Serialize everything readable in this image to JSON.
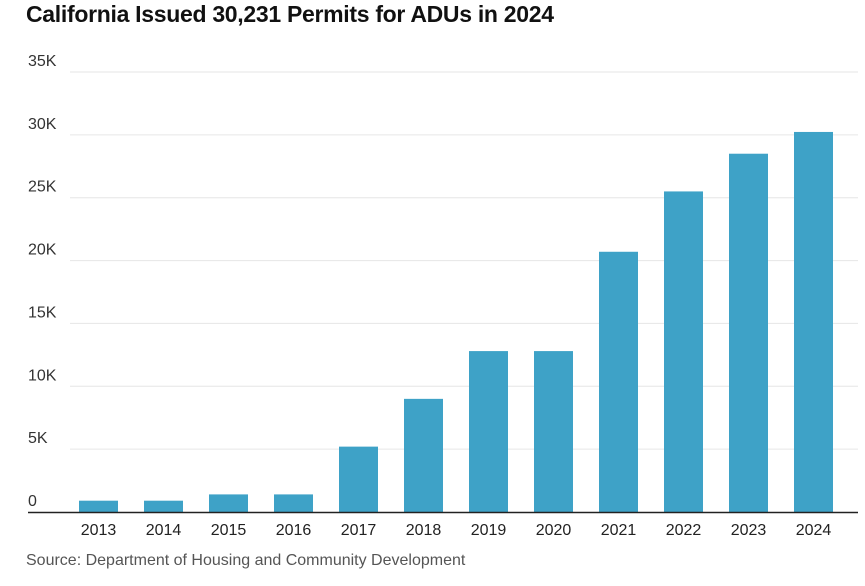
{
  "title": "California Issued 30,231 Permits for ADUs in 2024",
  "source": "Source: Department of Housing and Community Development",
  "colors": {
    "bar": "#3ea2c7",
    "grid": "#e6e6e6",
    "axis": "#222222"
  },
  "chart_data": {
    "type": "bar",
    "title": "California Issued 30,231 Permits for ADUs in 2024",
    "xlabel": "",
    "ylabel": "",
    "categories": [
      "2013",
      "2014",
      "2015",
      "2016",
      "2017",
      "2018",
      "2019",
      "2020",
      "2021",
      "2022",
      "2023",
      "2024"
    ],
    "values": [
      900,
      900,
      1400,
      1400,
      5200,
      9000,
      12800,
      12800,
      20700,
      25500,
      28500,
      30231
    ],
    "ylim": [
      0,
      35000
    ],
    "yticks": [
      0,
      5000,
      10000,
      15000,
      20000,
      25000,
      30000,
      35000
    ],
    "ytick_labels": [
      "0",
      "5K",
      "10K",
      "15K",
      "20K",
      "25K",
      "30K",
      "35K"
    ],
    "grid": true,
    "legend": "none"
  }
}
